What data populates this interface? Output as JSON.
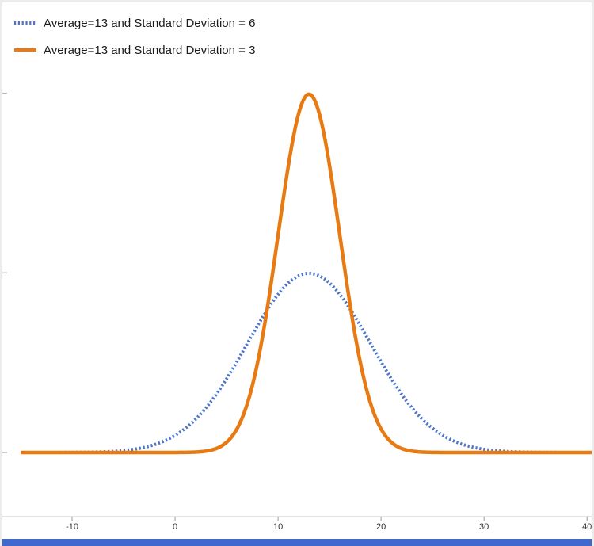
{
  "page": {
    "background": "#ffffff",
    "frame_border": "#ececec"
  },
  "legend": {
    "position": "top-left",
    "items": [
      {
        "label": "Average=13 and Standard Deviation = 6",
        "color": "#4b74cc",
        "line_style": "dotted"
      },
      {
        "label": "Average=13 and Standard Deviation = 3",
        "color": "#e87a14",
        "line_style": "solid"
      }
    ]
  },
  "chart_data": {
    "type": "line",
    "title": "",
    "xlabel": "",
    "ylabel": "",
    "x_range": [
      -15,
      40.6
    ],
    "x_ticks": [
      -10,
      0,
      10,
      20,
      30,
      40
    ],
    "y_range": [
      0,
      0.14
    ],
    "y_ticks": [
      0,
      0.0667,
      0.1333
    ],
    "grid": false,
    "legend_position": "top-left",
    "series": [
      {
        "name": "Average=13 and Standard Deviation = 6",
        "curve": "normal_pdf",
        "mean": 13,
        "sd": 6,
        "peak_x": 13,
        "peak_y": 0.0665,
        "color": "#4b74cc",
        "style": "dotted",
        "width": 4
      },
      {
        "name": "Average=13 and Standard Deviation = 3",
        "curve": "normal_pdf",
        "mean": 13,
        "sd": 3,
        "peak_x": 13,
        "peak_y": 0.133,
        "color": "#e87a14",
        "style": "solid",
        "width": 4.5
      }
    ],
    "axis": {
      "line_color": "#c9c9c9",
      "tick_color": "#9a9a9a",
      "label_color": "#333333"
    }
  },
  "bottom_bar": {
    "color": "#4169cd"
  }
}
